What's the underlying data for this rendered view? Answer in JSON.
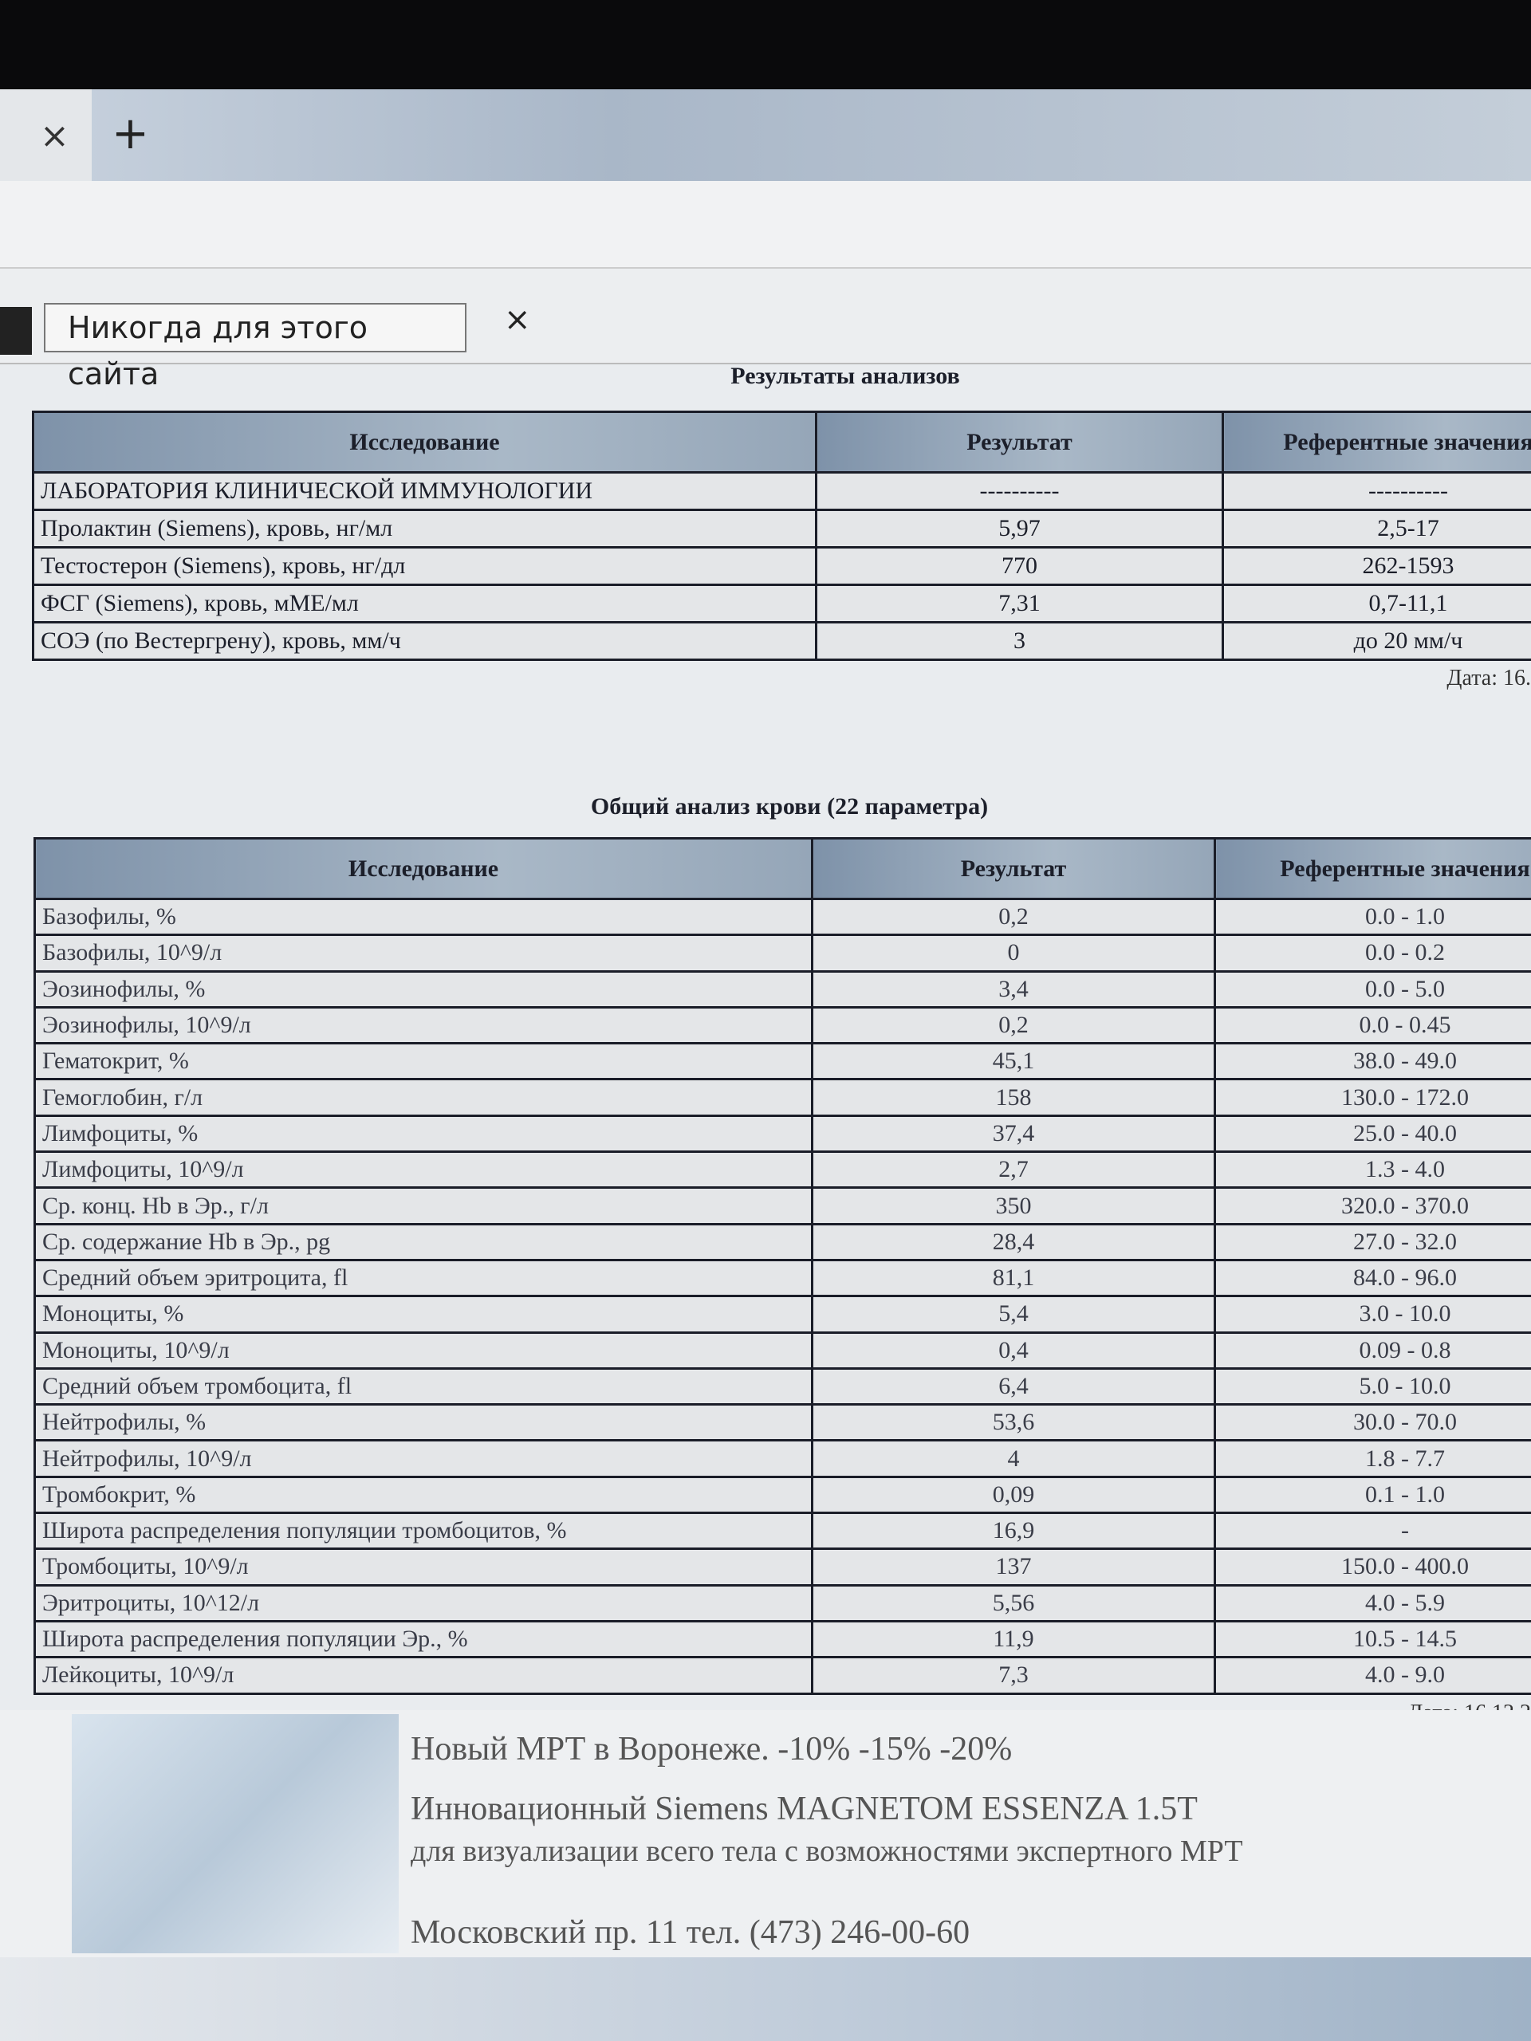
{
  "browser": {
    "tab_close": "×",
    "new_tab": "+"
  },
  "infobar": {
    "never_button": "Никогда для этого сайта",
    "close": "×"
  },
  "section1": {
    "title": "Результаты анализов",
    "headers": [
      "Исследование",
      "Результат",
      "Референтные значения"
    ],
    "rows": [
      [
        "ЛАБОРАТОРИЯ КЛИНИЧЕСКОЙ ИММУНОЛОГИИ",
        "----------",
        "----------"
      ],
      [
        "Пролактин (Siemens), кровь, нг/мл",
        "5,97",
        "2,5-17"
      ],
      [
        "Тестостерон (Siemens), кровь, нг/дл",
        "770",
        "262-1593"
      ],
      [
        "ФСГ (Siemens), кровь, мМЕ/мл",
        "7,31",
        "0,7-11,1"
      ],
      [
        "СОЭ (по Вестергрену), кровь, мм/ч",
        "3",
        "до 20 мм/ч"
      ]
    ],
    "date": "Дата: 16."
  },
  "section2": {
    "title": "Общий анализ крови (22 параметра)",
    "headers": [
      "Исследование",
      "Результат",
      "Референтные значения"
    ],
    "rows": [
      [
        "Базофилы, %",
        "0,2",
        "0.0 - 1.0"
      ],
      [
        "Базофилы, 10^9/л",
        "0",
        "0.0 - 0.2"
      ],
      [
        "Эозинофилы, %",
        "3,4",
        "0.0 - 5.0"
      ],
      [
        "Эозинофилы, 10^9/л",
        "0,2",
        "0.0 - 0.45"
      ],
      [
        "Гематокрит, %",
        "45,1",
        "38.0 - 49.0"
      ],
      [
        "Гемоглобин, г/л",
        "158",
        "130.0 - 172.0"
      ],
      [
        "Лимфоциты, %",
        "37,4",
        "25.0 - 40.0"
      ],
      [
        "Лимфоциты, 10^9/л",
        "2,7",
        "1.3 - 4.0"
      ],
      [
        "Ср. конц. Hb в Эр., г/л",
        "350",
        "320.0 - 370.0"
      ],
      [
        "Ср. содержание Hb в Эр., pg",
        "28,4",
        "27.0 - 32.0"
      ],
      [
        "Средний объем эритроцита, fl",
        "81,1",
        "84.0 - 96.0"
      ],
      [
        "Моноциты, %",
        "5,4",
        "3.0 - 10.0"
      ],
      [
        "Моноциты, 10^9/л",
        "0,4",
        "0.09 - 0.8"
      ],
      [
        "Средний объем тромбоцита, fl",
        "6,4",
        "5.0 - 10.0"
      ],
      [
        "Нейтрофилы, %",
        "53,6",
        "30.0 - 70.0"
      ],
      [
        "Нейтрофилы, 10^9/л",
        "4",
        "1.8 - 7.7"
      ],
      [
        "Тромбокрит, %",
        "0,09",
        "0.1 - 1.0"
      ],
      [
        "Широта распределения популяции тромбоцитов, %",
        "16,9",
        "-"
      ],
      [
        "Тромбоциты, 10^9/л",
        "137",
        "150.0 - 400.0"
      ],
      [
        "Эритроциты, 10^12/л",
        "5,56",
        "4.0 - 5.9"
      ],
      [
        "Широта распределения популяции Эр., %",
        "11,9",
        "10.5 - 14.5"
      ],
      [
        "Лейкоциты, 10^9/л",
        "7,3",
        "4.0 - 9.0"
      ]
    ],
    "date": "Дата: 16.12.2"
  },
  "ad": {
    "lines": [
      "Новый МРТ в Воронеже. -10% -15% -20%",
      "Инновационный Siemens MAGNETOM ESSENZA 1.5T",
      "для визуализации всего тела с возможностями экспертного МРТ",
      "Московский пр. 11 тел. (473) 246-00-60"
    ]
  }
}
